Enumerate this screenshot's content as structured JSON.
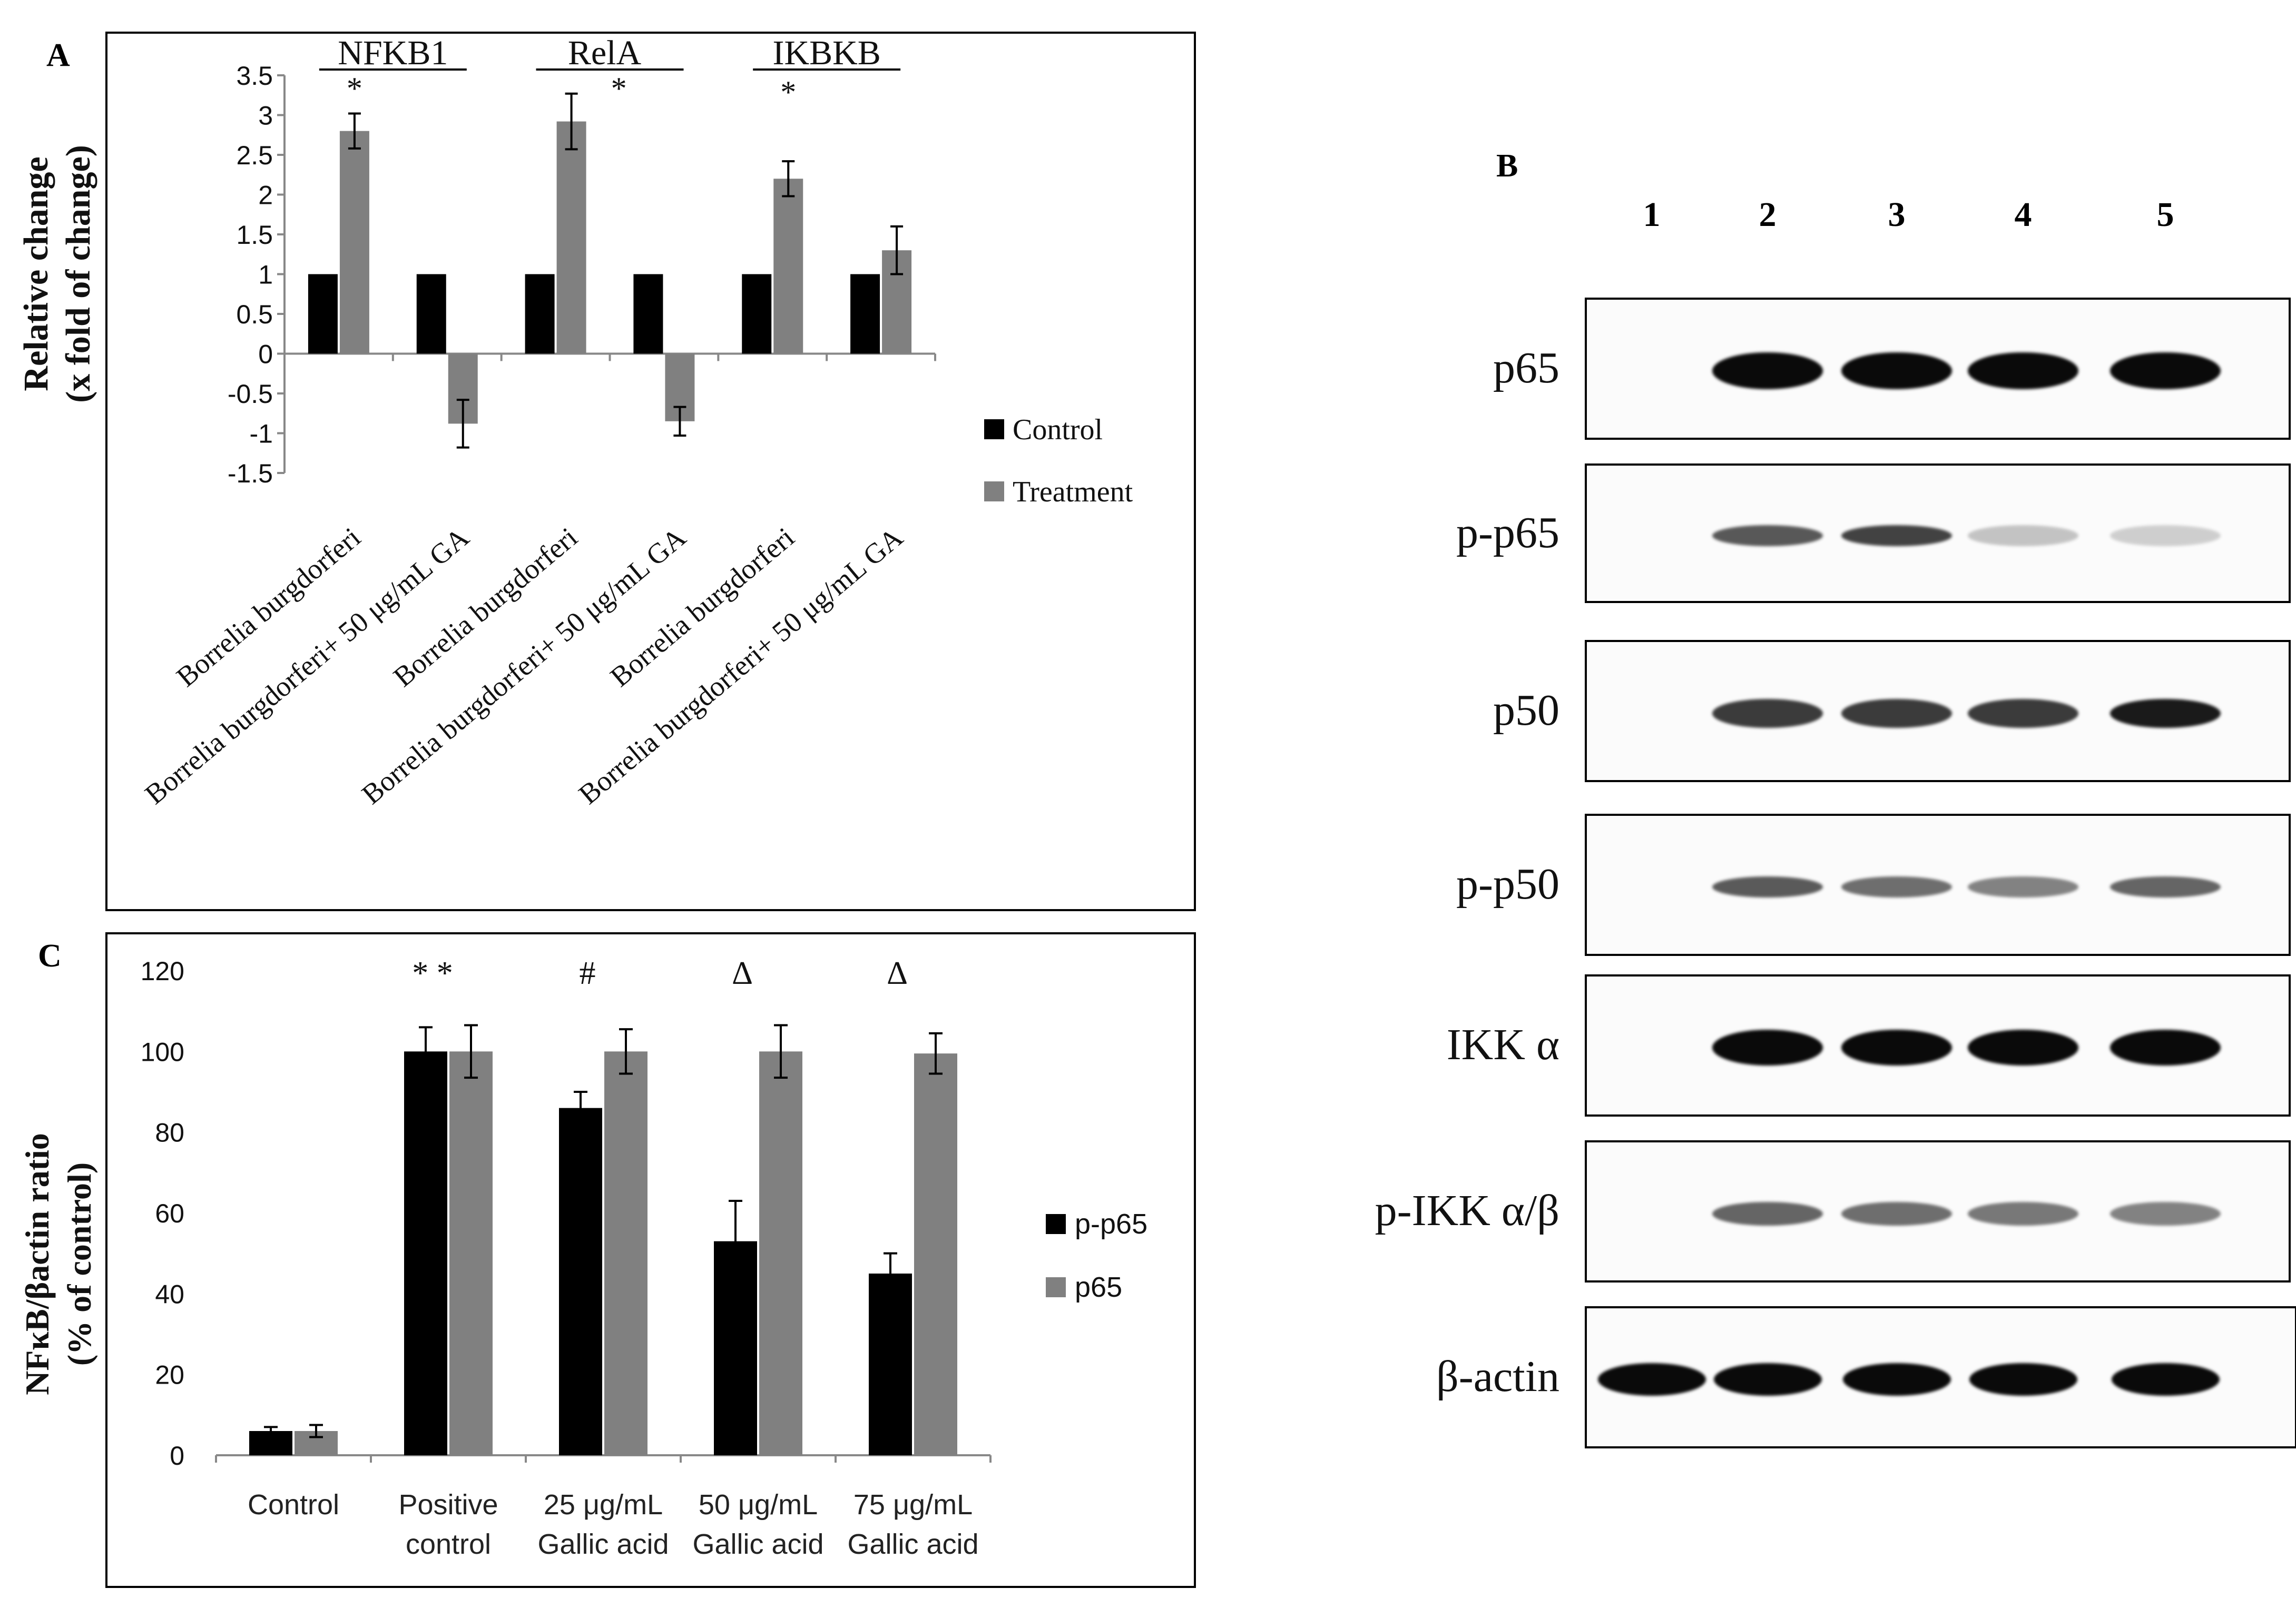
{
  "panels": {
    "a": "A",
    "b": "B",
    "c": "C"
  },
  "chart_data": [
    {
      "type": "bar",
      "panel": "A",
      "ylabel": "Relative change",
      "ylabel2": "(x fold of change)",
      "ylim": [
        -1.5,
        3.5
      ],
      "yticks": [
        "3.5",
        "3",
        "2.5",
        "2",
        "1.5",
        "1",
        "0.5",
        "0",
        "-0.5",
        "-1",
        "-1.5"
      ],
      "categories": [
        "Borrelia burgdorferi",
        "Borrelia burgdorferi+ 50 μg/mL GA",
        "Borrelia burgdorferi",
        "Borrelia burgdorferi+ 50 μg/mL GA",
        "Borrelia burgdorferi",
        "Borrelia burgdorferi+ 50 μg/mL GA"
      ],
      "gene_groups": [
        {
          "label": "NFKB1",
          "marker": "*"
        },
        {
          "label": "RelA",
          "marker": "*"
        },
        {
          "label": "IKBKB",
          "marker": "*"
        }
      ],
      "series": [
        {
          "name": "Control",
          "color": "#000000",
          "values": [
            1,
            1,
            1,
            1,
            1,
            1
          ]
        },
        {
          "name": "Treatment",
          "color": "#808080",
          "values": [
            2.8,
            -0.88,
            2.92,
            -0.85,
            2.2,
            1.3
          ],
          "errors": [
            0.22,
            0.3,
            0.35,
            0.18,
            0.22,
            0.3
          ]
        }
      ],
      "legend_position": "right"
    },
    {
      "type": "bar",
      "panel": "C",
      "ylabel": "NFκB/βactin ratio",
      "ylabel2": "(% of control)",
      "ylim": [
        0,
        120
      ],
      "yticks": [
        "120",
        "100",
        "80",
        "60",
        "40",
        "20",
        "0"
      ],
      "categories": [
        [
          "Control"
        ],
        [
          "Positive",
          "control"
        ],
        [
          "25 μg/mL",
          "Gallic acid"
        ],
        [
          "50 μg/mL",
          "Gallic acid"
        ],
        [
          "75 μg/mL",
          "Gallic acid"
        ]
      ],
      "significance": [
        "",
        "* *",
        "#",
        "Δ",
        "Δ"
      ],
      "series": [
        {
          "name": "p-p65",
          "color": "#000000",
          "values": [
            6,
            100,
            86,
            53,
            45
          ],
          "errors": [
            1,
            6,
            4,
            10,
            5
          ]
        },
        {
          "name": "p65",
          "color": "#808080",
          "values": [
            6,
            100,
            100,
            100,
            99.5
          ],
          "errors": [
            1.5,
            6.5,
            5.5,
            6.5,
            5
          ]
        }
      ],
      "legend_position": "right"
    }
  ],
  "blot": {
    "lanes": [
      "1",
      "2",
      "3",
      "4",
      "5"
    ],
    "rows": [
      {
        "label": "p65"
      },
      {
        "label": "p-p65"
      },
      {
        "label": "p50"
      },
      {
        "label": "p-p50"
      },
      {
        "label": "IKK α"
      },
      {
        "label": "p-IKK α/β"
      },
      {
        "label": "β-actin"
      }
    ]
  }
}
